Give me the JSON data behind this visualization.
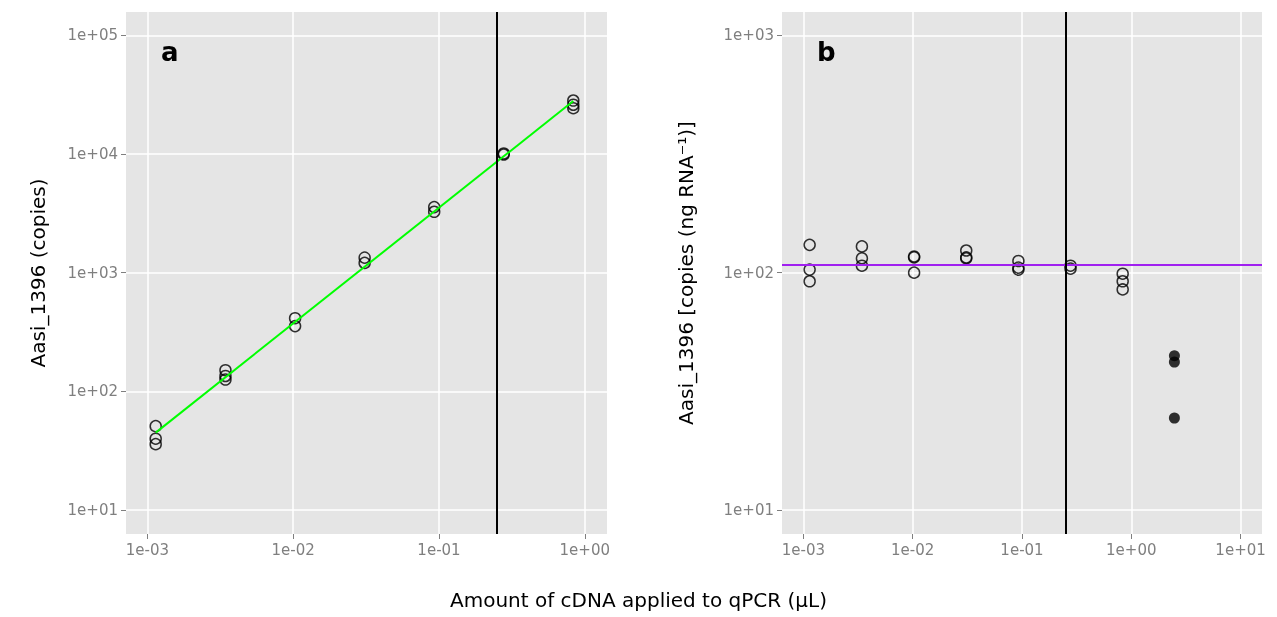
{
  "chart_data": [
    {
      "type": "scatter",
      "title": "a",
      "ylabel": "Aasi_1396 (copies)",
      "xlabel": "Amount of cDNA applied to qPCR (µL)",
      "log": "xy",
      "grid": true,
      "marker": "circle",
      "xlim": [
        0.000713,
        1.42
      ],
      "ylim": [
        6.3,
        157000
      ],
      "xticks": [
        {
          "value": 0.001,
          "label": "1e-03"
        },
        {
          "value": 0.01,
          "label": "1e-02"
        },
        {
          "value": 0.1,
          "label": "1e-01"
        },
        {
          "value": 1,
          "label": "1e+00"
        }
      ],
      "yticks": [
        {
          "value": 10,
          "label": "1e+01"
        },
        {
          "value": 100,
          "label": "1e+02"
        },
        {
          "value": 1000,
          "label": "1e+03"
        },
        {
          "value": 10000,
          "label": "1e+04"
        },
        {
          "value": 100000,
          "label": "1e+05"
        }
      ],
      "series": [
        {
          "color": "#000000",
          "x": [
            0.00114,
            0.00114,
            0.00114,
            0.00343,
            0.00343,
            0.00343,
            0.0103,
            0.0103,
            0.0309,
            0.0309,
            0.0927,
            0.0927,
            0.278,
            0.278,
            0.834,
            0.834,
            0.834
          ],
          "values": [
            51,
            40,
            36,
            151,
            135,
            126,
            414,
            355,
            1340,
            1210,
            3570,
            3260,
            10100,
            9900,
            28200,
            26000,
            24300
          ]
        },
        {
          "type": "line",
          "color": "#00ff00",
          "marker": "none",
          "x": [
            0.00114,
            0.834
          ],
          "values": [
            45,
            27900
          ]
        }
      ],
      "ref_lines": [
        {
          "axis": "x",
          "value": 0.25,
          "color": "#000000"
        }
      ]
    },
    {
      "type": "scatter",
      "title": "b",
      "ylabel": "Aasi_1396 [copies (ng RNA⁻¹)]",
      "log": "xy",
      "grid": true,
      "marker": "circle",
      "xlim": [
        0.000637,
        15.7
      ],
      "ylim": [
        7.93,
        1253
      ],
      "xticks": [
        {
          "value": 0.001,
          "label": "1e-03"
        },
        {
          "value": 0.01,
          "label": "1e-02"
        },
        {
          "value": 0.1,
          "label": "1e-01"
        },
        {
          "value": 1,
          "label": "1e+00"
        },
        {
          "value": 10,
          "label": "1e+01"
        }
      ],
      "yticks": [
        {
          "value": 10,
          "label": "1e+01"
        },
        {
          "value": 100,
          "label": "1e+02"
        },
        {
          "value": 1000,
          "label": "1e+03"
        }
      ],
      "series": [
        {
          "color": "#000000",
          "x": [
            0.00114,
            0.00114,
            0.00114,
            0.00343,
            0.00343,
            0.00343,
            0.0103,
            0.0103,
            0.0103,
            0.0309,
            0.0309,
            0.0309,
            0.0927,
            0.0927,
            0.0927,
            0.278,
            0.278,
            0.834,
            0.834,
            0.834
          ],
          "values": [
            131,
            103,
            92,
            129,
            115,
            107,
            117,
            116,
            100,
            124,
            116,
            115,
            112,
            105,
            103,
            107,
            104,
            99,
            92,
            85
          ]
        },
        {
          "color": "#000000",
          "marker": "circle",
          "x": [
            2.48,
            2.48,
            2.48
          ],
          "values": [
            44.7,
            42,
            24.4
          ]
        }
      ],
      "ref_lines": [
        {
          "axis": "y",
          "value": 108,
          "color": "#a020f0"
        },
        {
          "axis": "x",
          "value": 0.248,
          "color": "#000000"
        }
      ]
    }
  ]
}
